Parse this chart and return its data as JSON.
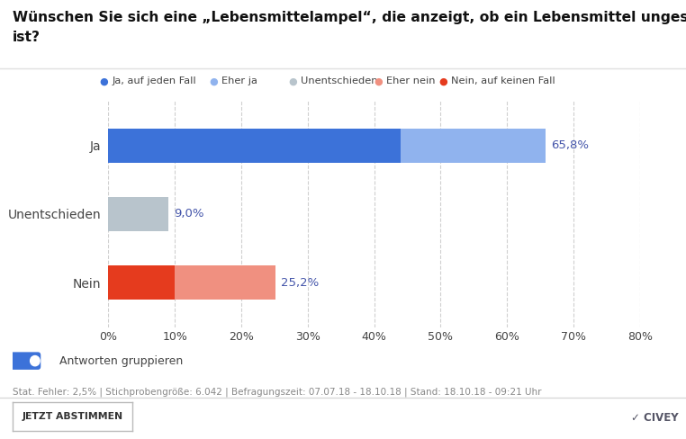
{
  "title_line1": "Wünschen Sie sich eine „Lebensmittelampel“, die anzeigt, ob ein Lebensmittel ungesund",
  "title_line2": "ist?",
  "categories": [
    "Ja",
    "Unentschieden",
    "Nein"
  ],
  "segments": {
    "Ja": [
      44.0,
      21.8
    ],
    "Unentschieden": [
      9.0
    ],
    "Nein": [
      10.0,
      15.2
    ]
  },
  "totals": {
    "Ja": "65,8%",
    "Unentschieden": "9,0%",
    "Nein": "25,2%"
  },
  "totals_vals": {
    "Ja": 65.8,
    "Unentschieden": 9.0,
    "Nein": 25.2
  },
  "colors": {
    "ja_jeden_fall": "#3c72d9",
    "eher_ja": "#90b3ee",
    "unentschieden": "#b8c4cc",
    "eher_nein": "#f09080",
    "nein_keinen_fall": "#e53b1e"
  },
  "legend": [
    {
      "label": "Ja, auf jeden Fall",
      "color": "#3c72d9"
    },
    {
      "label": "Eher ja",
      "color": "#90b3ee"
    },
    {
      "label": "Unentschieden",
      "color": "#b8c4cc"
    },
    {
      "label": "Eher nein",
      "color": "#f09080"
    },
    {
      "label": "Nein, auf keinen Fall",
      "color": "#e53b1e"
    }
  ],
  "xlim": [
    0,
    80
  ],
  "xticks": [
    0,
    10,
    20,
    30,
    40,
    50,
    60,
    70,
    80
  ],
  "xtick_labels": [
    "0%",
    "10%",
    "20%",
    "30%",
    "40%",
    "50%",
    "60%",
    "70%",
    "80%"
  ],
  "footer": "Stat. Fehler: 2,5% | Stichprobengröße: 6.042 | Befragungszeit: 07.07.18 - 18.10.18 | Stand: 18.10.18 - 09:21 Uhr",
  "bg_color": "#ffffff",
  "grid_color": "#d0d0d0",
  "bar_height": 0.5,
  "font_color": "#444444",
  "label_color": "#4455aa"
}
